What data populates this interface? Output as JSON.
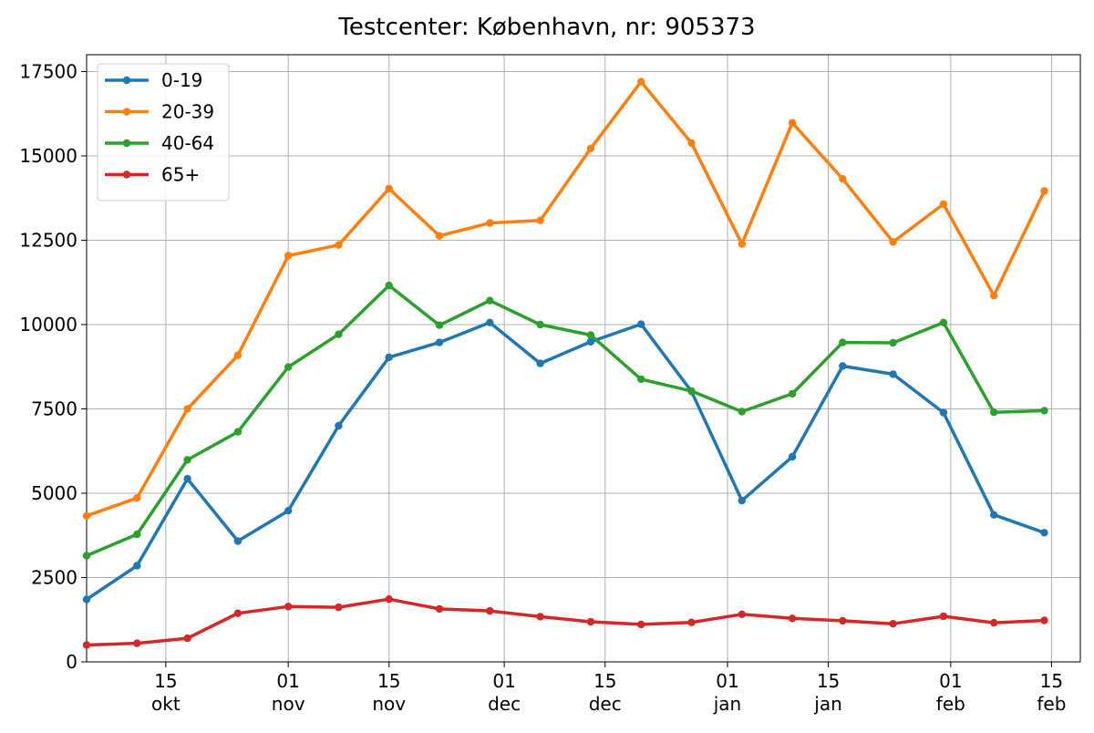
{
  "chart_data": {
    "type": "line",
    "title": "Testcenter: København, nr: 905373",
    "xlabel": "",
    "ylabel": "",
    "x_dates": [
      "2020-10-04",
      "2020-10-11",
      "2020-10-18",
      "2020-10-25",
      "2020-11-01",
      "2020-11-08",
      "2020-11-15",
      "2020-11-22",
      "2020-11-29",
      "2020-12-06",
      "2020-12-13",
      "2020-12-20",
      "2020-12-27",
      "2021-01-03",
      "2021-01-10",
      "2021-01-17",
      "2021-01-24",
      "2021-01-31",
      "2021-02-07",
      "2021-02-14"
    ],
    "xlim": [
      "2020-10-04",
      "2021-02-19"
    ],
    "x_ticks": [
      {
        "date": "2020-10-15",
        "day": "15",
        "month": "okt"
      },
      {
        "date": "2020-11-01",
        "day": "01",
        "month": "nov"
      },
      {
        "date": "2020-11-15",
        "day": "15",
        "month": "nov"
      },
      {
        "date": "2020-12-01",
        "day": "01",
        "month": "dec"
      },
      {
        "date": "2020-12-15",
        "day": "15",
        "month": "dec"
      },
      {
        "date": "2021-01-01",
        "day": "01",
        "month": "jan"
      },
      {
        "date": "2021-01-15",
        "day": "15",
        "month": "jan"
      },
      {
        "date": "2021-02-01",
        "day": "01",
        "month": "feb"
      },
      {
        "date": "2021-02-15",
        "day": "15",
        "month": "feb"
      }
    ],
    "ylim": [
      0,
      18000
    ],
    "y_ticks": [
      0,
      2500,
      5000,
      7500,
      10000,
      12500,
      15000,
      17500
    ],
    "grid": true,
    "legend_position": "top-left",
    "series": [
      {
        "name": "0-19",
        "color": "#1f77b4",
        "values": [
          1850,
          2850,
          5430,
          3580,
          4480,
          7000,
          9030,
          9470,
          10060,
          8850,
          9490,
          10010,
          8020,
          4780,
          6080,
          8770,
          8530,
          7390,
          4360,
          3830
        ]
      },
      {
        "name": "20-39",
        "color": "#ff7f0e",
        "values": [
          4330,
          4860,
          7500,
          9090,
          12040,
          12360,
          14030,
          12630,
          13010,
          13090,
          15220,
          17200,
          15380,
          12390,
          15980,
          14320,
          12450,
          13570,
          10860,
          13960
        ]
      },
      {
        "name": "40-64",
        "color": "#2ca02c",
        "values": [
          3150,
          3780,
          5990,
          6820,
          8740,
          9710,
          11160,
          9980,
          10710,
          10000,
          9690,
          8380,
          8030,
          7420,
          7950,
          9470,
          9460,
          10060,
          7400,
          7450
        ]
      },
      {
        "name": "65+",
        "color": "#d62728",
        "values": [
          500,
          550,
          700,
          1440,
          1640,
          1620,
          1860,
          1570,
          1510,
          1340,
          1190,
          1110,
          1170,
          1410,
          1290,
          1220,
          1130,
          1350,
          1160,
          1230
        ]
      }
    ]
  }
}
